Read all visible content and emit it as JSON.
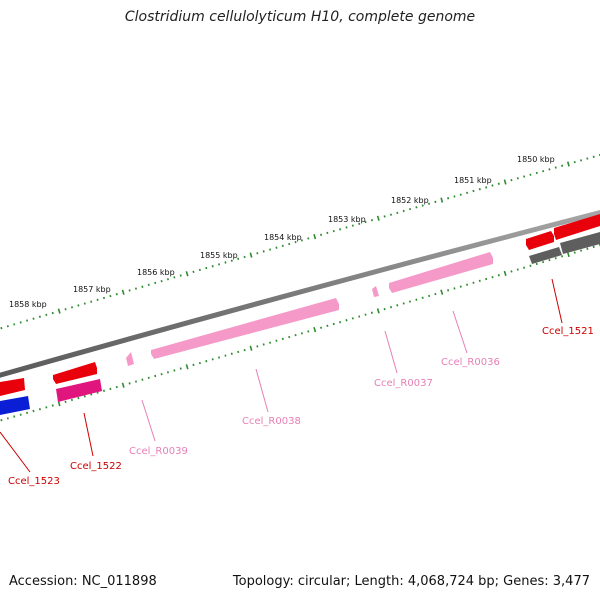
{
  "title": "Clostridium cellulolyticum H10, complete genome",
  "footer": {
    "accession": "Accession: NC_011898",
    "topology": "Topology: circular; Length: 4,068,724 bp; Genes: 3,477"
  },
  "colors": {
    "backbone": "#7a7a7a",
    "ruler_ticks": "#2e8b2e",
    "cds_red": "#e8000b",
    "rna_pink": "#f59ac8",
    "cds_magenta": "#e0157e",
    "cds_blue": "#0a1ed6",
    "cds_gray": "#5e5e5e",
    "label_red": "#cc0000",
    "label_pink": "#e67fb5"
  },
  "scale_labels": [
    "1850 kbp",
    "1851 kbp",
    "1852 kbp",
    "1853 kbp",
    "1854 kbp",
    "1855 kbp",
    "1856 kbp",
    "1857 kbp",
    "1858 kbp"
  ],
  "gene_labels": {
    "ccel_1521": "Ccel_1521",
    "ccel_r0036": "Ccel_R0036",
    "ccel_r0037": "Ccel_R0037",
    "ccel_r0038": "Ccel_R0038",
    "ccel_r0039": "Ccel_R0039",
    "ccel_1522": "Ccel_1522",
    "ccel_1523": "Ccel_1523"
  }
}
